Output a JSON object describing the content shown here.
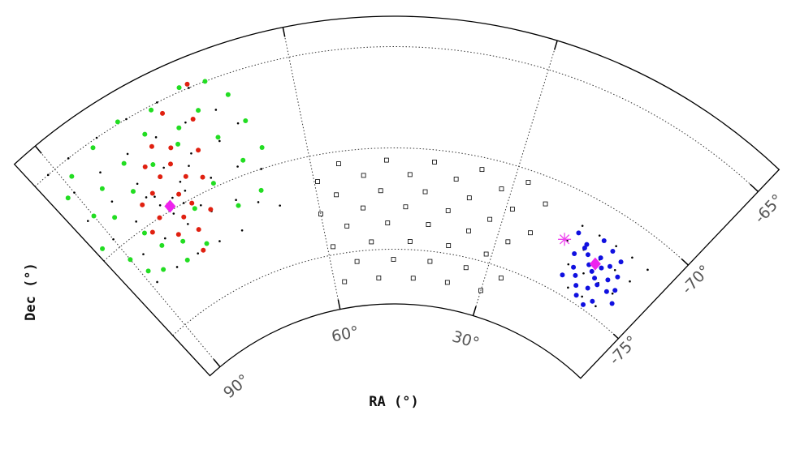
{
  "chart_data": {
    "type": "polar-sky-map",
    "xlabel": "RA (°)",
    "ylabel": "Dec (°)",
    "xlim": [
      93,
      2
    ],
    "ylim": [
      -77.7,
      -63.5
    ],
    "xticks": [
      {
        "value": 90,
        "label": "90°"
      },
      {
        "value": 60,
        "label": "60°"
      },
      {
        "value": 30,
        "label": "30°"
      }
    ],
    "yticks": [
      {
        "value": -75,
        "label": "-75°"
      },
      {
        "value": -70,
        "label": "-70°"
      },
      {
        "value": -65,
        "label": "-65°"
      }
    ],
    "grid": true,
    "series": [
      {
        "marker": "dot",
        "color": "#000000",
        "x": [
          72,
          76,
          80,
          84,
          88,
          91,
          70,
          74,
          78,
          82,
          86,
          90,
          71,
          75,
          79,
          83,
          87,
          91,
          70,
          74,
          78,
          82,
          86,
          90,
          72,
          76,
          80,
          84,
          88,
          73,
          77,
          81,
          85,
          89,
          78,
          79,
          80,
          81,
          76,
          77,
          82,
          83,
          67,
          69,
          68,
          66
        ],
        "y": [
          -65,
          -65,
          -65,
          -65,
          -65,
          -65,
          -66.5,
          -66.5,
          -66.5,
          -66.5,
          -66.5,
          -66.5,
          -68,
          -68,
          -68,
          -68,
          -68,
          -68,
          -69.5,
          -69.5,
          -69.5,
          -69.5,
          -69.5,
          -69.5,
          -71,
          -71,
          -71,
          -71,
          -71,
          -72.5,
          -72.5,
          -72.5,
          -72.5,
          -72.5,
          -69,
          -70,
          -69.5,
          -70.2,
          -68.5,
          -70.5,
          -69,
          -68.8,
          -70,
          -71.5,
          -67.5,
          -72
        ]
      },
      {
        "marker": "dot",
        "color": "#000000",
        "x": [
          6,
          9,
          12,
          15,
          18,
          7,
          10,
          13,
          16,
          19,
          8,
          11,
          14,
          17,
          9,
          12,
          15
        ],
        "y": [
          -71.5,
          -71.5,
          -71.5,
          -71.5,
          -71.5,
          -72.5,
          -72.5,
          -72.5,
          -72.5,
          -72.5,
          -73.5,
          -73.5,
          -73.5,
          -73.5,
          -74.5,
          -74.5,
          -74.5
        ]
      },
      {
        "marker": "square",
        "color": "#000000",
        "x": [
          56,
          49,
          42,
          35,
          28,
          59.5,
          52.5,
          45.5,
          38.5,
          31.5,
          24.5,
          57,
          50,
          43,
          36,
          29,
          60,
          53,
          46,
          39,
          32,
          25,
          56,
          49,
          42,
          35,
          28,
          59,
          52,
          45,
          38,
          31,
          55,
          48,
          41,
          34,
          27,
          58,
          51,
          44,
          37,
          30
        ],
        "y": [
          -70.6,
          -70.6,
          -70.6,
          -70.6,
          -70.6,
          -71.3,
          -71.3,
          -71.3,
          -71.3,
          -71.3,
          -71.3,
          -72.1,
          -72.1,
          -72.1,
          -72.1,
          -72.1,
          -72.9,
          -72.9,
          -72.9,
          -72.9,
          -72.9,
          -72.9,
          -73.7,
          -73.7,
          -73.7,
          -73.7,
          -73.7,
          -74.6,
          -74.6,
          -74.6,
          -74.6,
          -74.6,
          -75.5,
          -75.5,
          -75.5,
          -75.5,
          -75.5,
          -76.4,
          -76.4,
          -76.4,
          -76.4,
          -76.4
        ]
      },
      {
        "marker": "dot",
        "color": "#22dd22",
        "x": [
          70,
          73,
          77,
          81,
          85,
          89,
          91,
          68,
          72,
          75,
          79,
          83,
          87,
          90,
          67,
          71,
          76,
          80,
          84,
          88,
          92,
          66,
          69,
          74,
          78,
          86,
          90,
          68,
          72,
          82,
          85,
          89,
          79,
          83,
          87
        ],
        "y": [
          -65,
          -64.8,
          -65.2,
          -64.9,
          -65.3,
          -65.8,
          -66.5,
          -66,
          -66.2,
          -66.6,
          -66.1,
          -66.8,
          -67.2,
          -68,
          -67.5,
          -67.8,
          -67.3,
          -67.6,
          -68.2,
          -68.7,
          -69.5,
          -69,
          -69.3,
          -69.8,
          -70.5,
          -70.2,
          -70.8,
          -71,
          -71.3,
          -71.6,
          -71.2,
          -71.8,
          -72.3,
          -72.5,
          -72.2
        ]
      },
      {
        "marker": "dot",
        "color": "#e02010",
        "x": [
          72,
          76,
          79,
          81,
          78,
          80,
          82,
          77,
          75,
          79,
          81,
          83,
          78,
          80,
          76,
          84,
          74,
          82,
          79,
          77,
          85,
          73,
          80
        ],
        "y": [
          -64.8,
          -65.6,
          -66.8,
          -67.5,
          -68,
          -68.3,
          -68.8,
          -68.9,
          -69.3,
          -69.5,
          -69.7,
          -70,
          -70.2,
          -70.6,
          -70.9,
          -69,
          -68,
          -71.2,
          -71.5,
          -67.3,
          -70.4,
          -66.5,
          -72.5
        ]
      },
      {
        "marker": "dot",
        "color": "#1010e0",
        "x": [
          14,
          12,
          10,
          16,
          18,
          13,
          11,
          9,
          15,
          17,
          12,
          14,
          10,
          8,
          13,
          16,
          11,
          15,
          7,
          12,
          14,
          10,
          17,
          13,
          11,
          9,
          16,
          12
        ],
        "y": [
          -71.6,
          -71.8,
          -72,
          -72.2,
          -71.9,
          -72.4,
          -72.5,
          -72.7,
          -72.6,
          -72.9,
          -72.8,
          -73,
          -73.1,
          -73.3,
          -73.2,
          -73.5,
          -73.6,
          -73.8,
          -73.9,
          -74,
          -74.2,
          -74.4,
          -74.1,
          -74.6,
          -74.8,
          -73.6,
          -72.4,
          -73.4
        ]
      },
      {
        "marker": "diamond",
        "color": "#ee22ee",
        "x": [
          80.9,
          13.2
        ],
        "y": [
          -69.8,
          -72.8
        ]
      },
      {
        "marker": "star",
        "color": "#ee44ee",
        "x": [
          19.5
        ],
        "y": [
          -72.5
        ]
      }
    ]
  }
}
